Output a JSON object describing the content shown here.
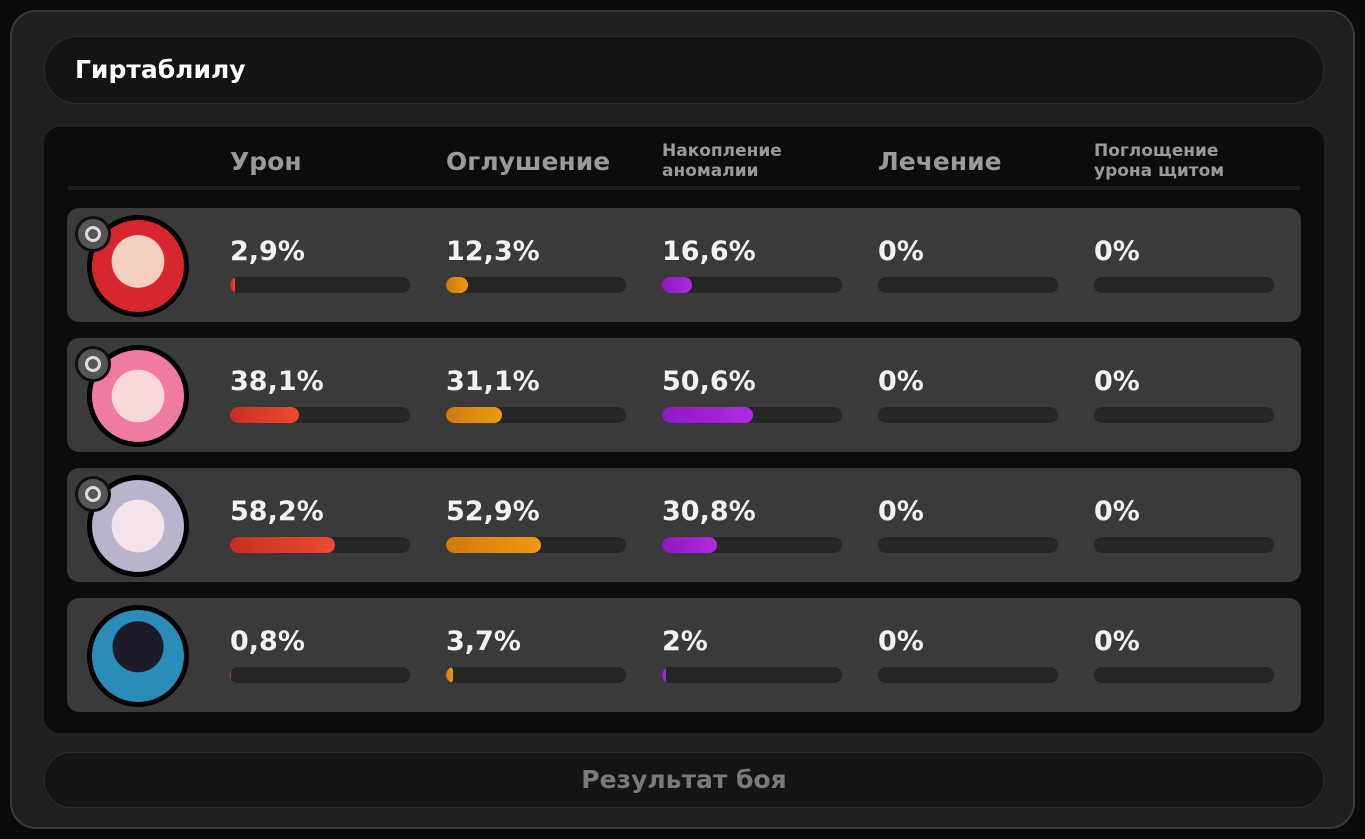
{
  "header": {
    "title": "Гиртаблилу"
  },
  "table": {
    "columns": [
      "Урон",
      "Оглушение",
      "Накопление аномалии",
      "Лечение",
      "Поглощение урона щитом"
    ],
    "rows": [
      {
        "values": [
          2.9,
          12.3,
          16.6,
          0,
          0
        ],
        "value_labels": [
          "2,9%",
          "12,3%",
          "16,6%",
          "0%",
          "0%"
        ]
      },
      {
        "values": [
          38.1,
          31.1,
          50.6,
          0,
          0
        ],
        "value_labels": [
          "38,1%",
          "31,1%",
          "50,6%",
          "0%",
          "0%"
        ]
      },
      {
        "values": [
          58.2,
          52.9,
          30.8,
          0,
          0
        ],
        "value_labels": [
          "58,2%",
          "52,9%",
          "30,8%",
          "0%",
          "0%"
        ]
      },
      {
        "values": [
          0.8,
          3.7,
          2,
          0,
          0
        ],
        "value_labels": [
          "0,8%",
          "3,7%",
          "2%",
          "0%",
          "0%"
        ]
      }
    ]
  },
  "footer": {
    "button": "Результат боя"
  }
}
